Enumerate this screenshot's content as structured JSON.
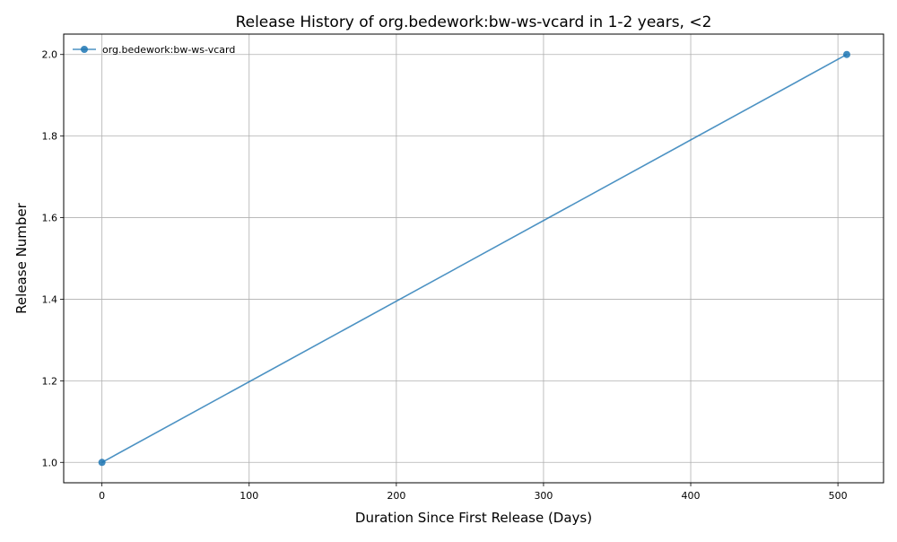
{
  "chart_data": {
    "type": "line",
    "title": "Release History of org.bedework:bw-ws-vcard in 1-2 years, <2",
    "xlabel": "Duration Since First Release (Days)",
    "ylabel": "Release Number",
    "xlim": [
      -26,
      531
    ],
    "ylim": [
      0.95,
      2.05
    ],
    "xticks": [
      0,
      100,
      200,
      300,
      400,
      500
    ],
    "yticks": [
      1.0,
      1.2,
      1.4,
      1.6,
      1.8,
      2.0
    ],
    "xtick_labels": [
      "0",
      "100",
      "200",
      "300",
      "400",
      "500"
    ],
    "ytick_labels": [
      "1.0",
      "1.2",
      "1.4",
      "1.6",
      "1.8",
      "2.0"
    ],
    "grid": true,
    "legend_position": "top-left",
    "series": [
      {
        "name": "org.bedework:bw-ws-vcard",
        "color": "#1f77b4",
        "x": [
          0,
          506
        ],
        "y": [
          1,
          2
        ]
      }
    ]
  }
}
